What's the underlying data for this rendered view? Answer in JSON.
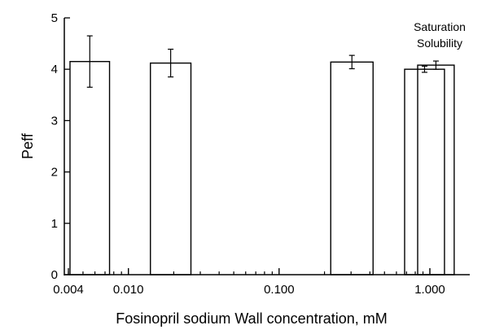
{
  "chart_data": {
    "type": "bar",
    "xlabel": "Fosinopril sodium Wall concentration, mM",
    "ylabel": "Peff",
    "xscale": "log",
    "xlim": [
      0.004,
      1.8
    ],
    "ylim": [
      0,
      5
    ],
    "xticks": [
      {
        "value": 0.004,
        "label": "0.004"
      },
      {
        "value": 0.01,
        "label": "0.010"
      },
      {
        "value": 0.1,
        "label": "0.100"
      },
      {
        "value": 1.0,
        "label": "1.000"
      }
    ],
    "yticks": [
      0,
      1,
      2,
      3,
      4,
      5
    ],
    "grid": false,
    "bars": [
      {
        "x_start": 0.0041,
        "x_end": 0.0075,
        "value": 4.15,
        "error": 0.5
      },
      {
        "x_start": 0.014,
        "x_end": 0.026,
        "value": 4.12,
        "error": 0.27
      },
      {
        "x_start": 0.22,
        "x_end": 0.42,
        "value": 4.14,
        "error": 0.13
      },
      {
        "x_start": 0.68,
        "x_end": 1.25,
        "value": 4.0,
        "error": 0.06
      },
      {
        "x_start": 0.83,
        "x_end": 1.45,
        "value": 4.08,
        "error": 0.08
      }
    ],
    "annotation": {
      "lines": [
        "Saturation",
        "Solubility"
      ],
      "x": 1.0
    }
  }
}
